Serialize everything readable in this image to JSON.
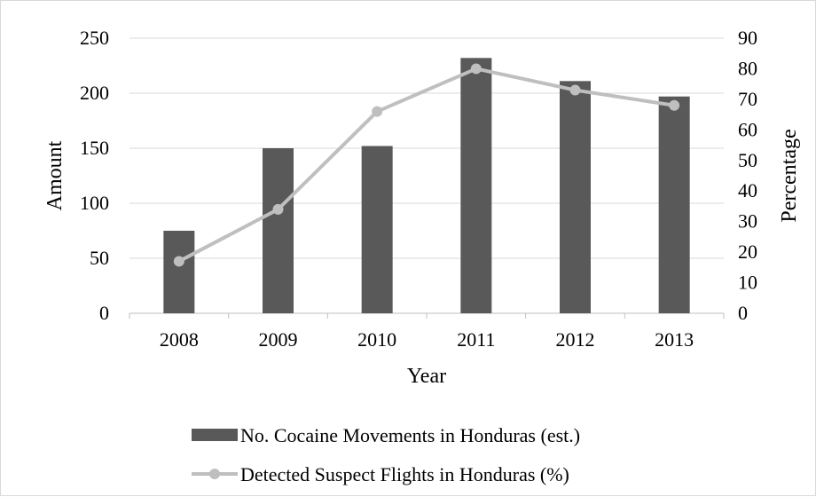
{
  "chart_data": {
    "type": "bar",
    "title": "",
    "categories": [
      "2008",
      "2009",
      "2010",
      "2011",
      "2012",
      "2013"
    ],
    "xlabel": "Year",
    "ylabel": "Amount",
    "y2label": "Percentage",
    "ylim": [
      0,
      250
    ],
    "y2lim": [
      0,
      90
    ],
    "yticks": [
      "0",
      "50",
      "100",
      "150",
      "200",
      "250"
    ],
    "y2ticks": [
      "0",
      "10",
      "20",
      "30",
      "40",
      "50",
      "60",
      "70",
      "80",
      "90"
    ],
    "grid": true,
    "legend_position": "bottom",
    "series": [
      {
        "name": "No. Cocaine Movements in Honduras (est.)",
        "type": "bar",
        "axis": "left",
        "color": "#595959",
        "values": [
          75,
          150,
          152,
          232,
          211,
          197
        ]
      },
      {
        "name": "Detected Suspect Flights in Honduras (%)",
        "type": "line",
        "axis": "right",
        "color": "#bfbfbf",
        "values": [
          17,
          34,
          66,
          80,
          73,
          68
        ]
      }
    ]
  }
}
